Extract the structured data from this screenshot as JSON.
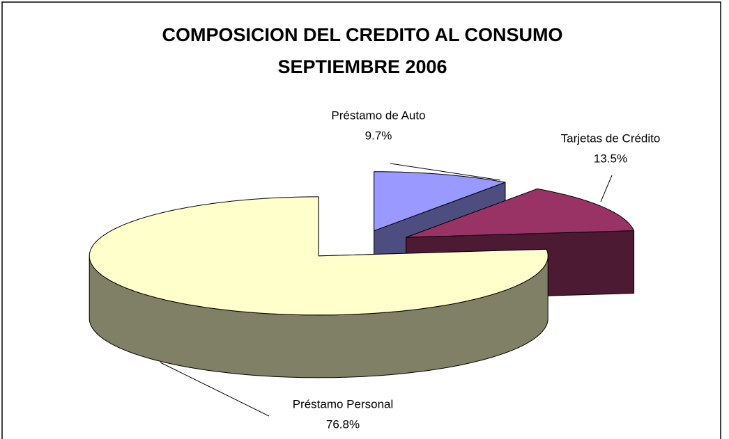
{
  "chart_data": {
    "type": "pie3d",
    "title": "COMPOSICION DEL CREDITO AL CONSUMO",
    "subtitle": "SEPTIEMBRE 2006",
    "categories": [
      "Préstamo de Auto",
      "Tarjetas de Crédito",
      "Préstamo Personal"
    ],
    "values": [
      9.7,
      13.5,
      76.8
    ],
    "value_labels": [
      "9.7%",
      "13.5%",
      "76.8%"
    ],
    "colors": [
      "#9999ff",
      "#993366",
      "#ffffcc"
    ]
  }
}
